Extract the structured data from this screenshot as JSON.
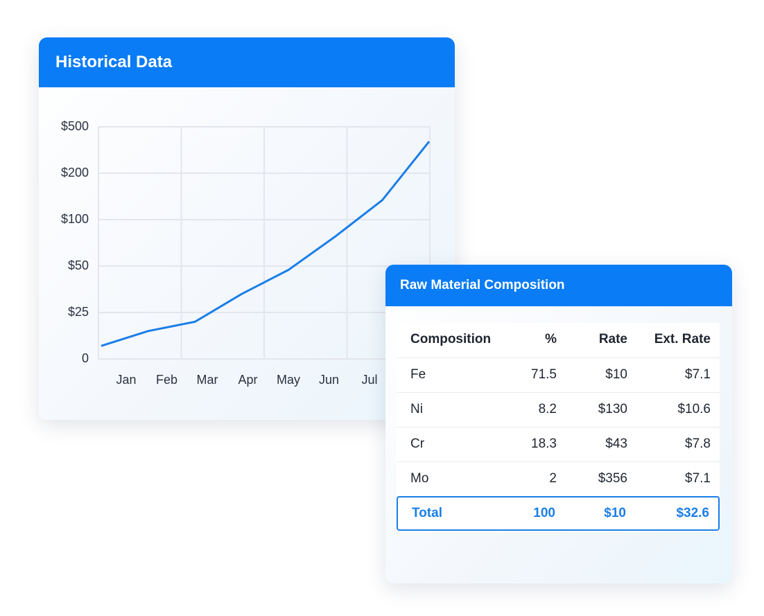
{
  "chart_data": {
    "type": "line",
    "title": "Historical Data",
    "categories": [
      "Jan",
      "Feb",
      "Mar",
      "Apr",
      "May",
      "Jun",
      "Jul",
      null
    ],
    "series": [
      {
        "color": "#1a7ee8",
        "values": [
          7,
          15,
          20,
          35,
          48,
          82,
          142,
          405
        ]
      }
    ],
    "ylim": [
      0,
      500
    ],
    "yticks": [
      0,
      {
        "value": 25,
        "label": "$25"
      },
      {
        "value": 50,
        "label": "$50"
      },
      {
        "value": 100,
        "label": "$100"
      },
      {
        "value": 200,
        "label": "$200"
      },
      {
        "value": 500,
        "label": "$500"
      }
    ],
    "grid": true
  },
  "table": {
    "title": "Raw Material Composition",
    "header": [
      "Composition",
      "%",
      "Rate",
      "Ext. Rate"
    ],
    "rows": [
      [
        "Fe",
        "71.5",
        "$10",
        "$7.1"
      ],
      [
        "Ni",
        "8.2",
        "$130",
        "$10.6"
      ],
      [
        "Cr",
        "18.3",
        "$43",
        "$7.8"
      ],
      [
        "Mo",
        "2",
        "$356",
        "$7.1"
      ]
    ],
    "total": [
      "Total",
      "100",
      "$10",
      "$32.6"
    ]
  }
}
